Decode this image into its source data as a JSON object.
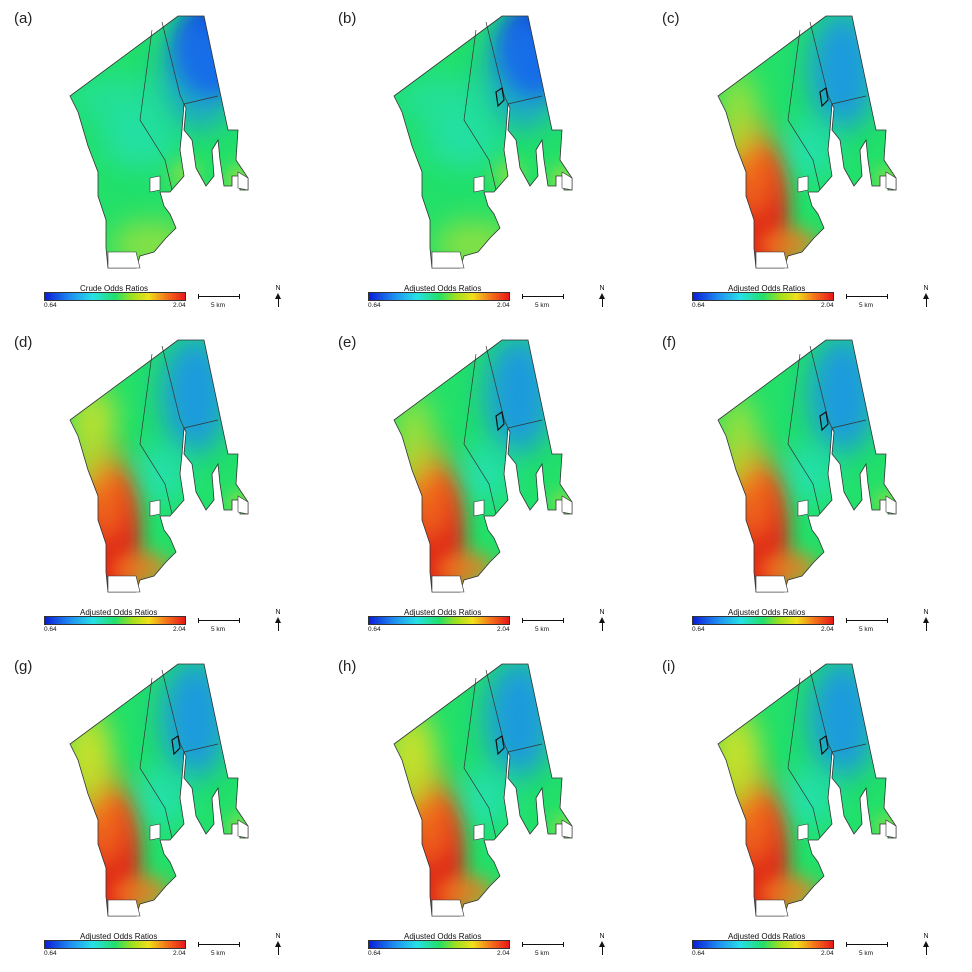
{
  "figure": {
    "panels": [
      {
        "letter": "(a)",
        "legend_title": "Crude Odds Ratios",
        "variant": "crude"
      },
      {
        "letter": "(b)",
        "legend_title": "Adjusted Odds Ratios",
        "variant": "b"
      },
      {
        "letter": "(c)",
        "legend_title": "Adjusted Odds Ratios",
        "variant": "c"
      },
      {
        "letter": "(d)",
        "legend_title": "Adjusted Odds Ratios",
        "variant": "d"
      },
      {
        "letter": "(e)",
        "legend_title": "Adjusted Odds Ratios",
        "variant": "e"
      },
      {
        "letter": "(f)",
        "legend_title": "Adjusted Odds Ratios",
        "variant": "f"
      },
      {
        "letter": "(g)",
        "legend_title": "Adjusted Odds Ratios",
        "variant": "g"
      },
      {
        "letter": "(h)",
        "legend_title": "Adjusted Odds Ratios",
        "variant": "h"
      },
      {
        "letter": "(i)",
        "legend_title": "Adjusted Odds Ratios",
        "variant": "i"
      }
    ],
    "legend": {
      "min": "0.64",
      "max": "2.04"
    },
    "scale_label": "5 km",
    "north_label": "N",
    "colors": {
      "low": "#0a1dd6",
      "mid_low": "#27e0e6",
      "mid": "#22e06a",
      "mid_high": "#f0e11a",
      "high": "#e81818",
      "boundary": "#333333"
    }
  }
}
